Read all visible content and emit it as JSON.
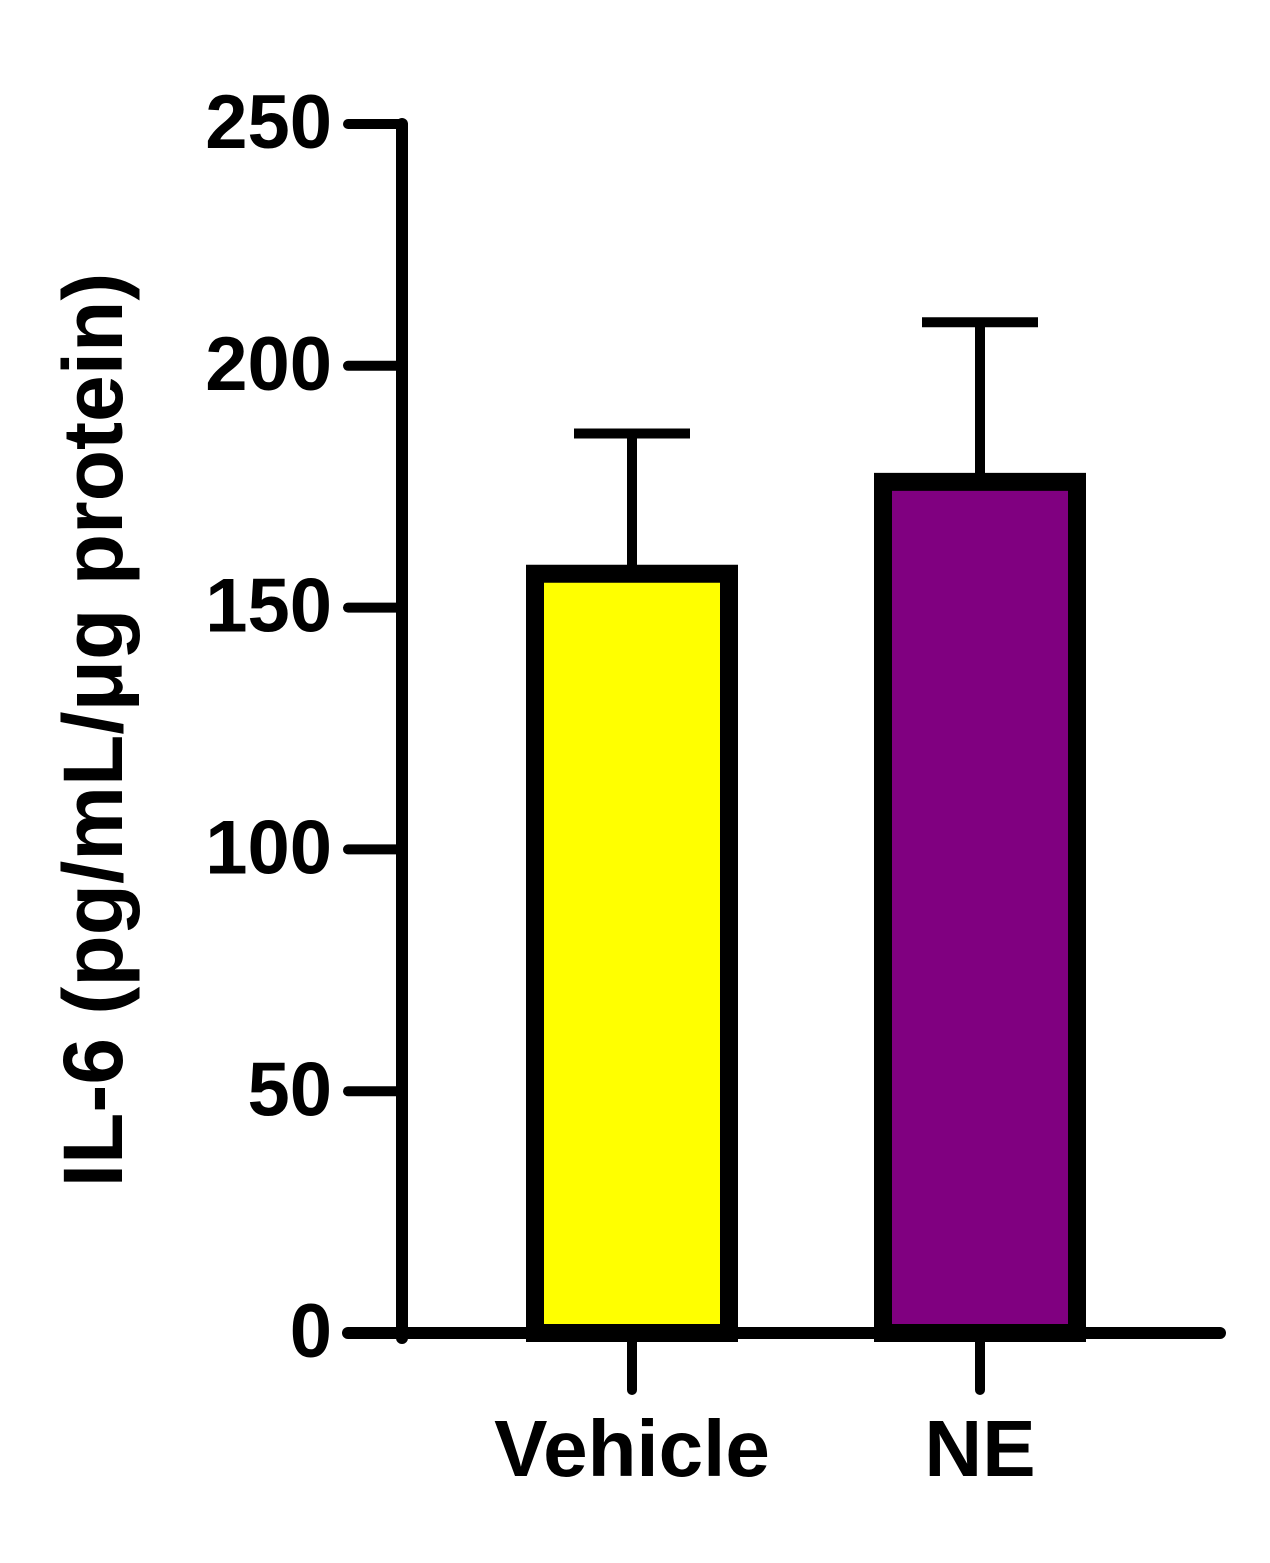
{
  "chart_data": {
    "type": "bar",
    "y_label": "IL-6 (pg/mL/μg protein)",
    "categories": [
      "Vehicle",
      "NE"
    ],
    "values": [
      157,
      176
    ],
    "errors": [
      29,
      33
    ],
    "colors": [
      "#ffff00",
      "#800080"
    ],
    "ylim": [
      0,
      250
    ],
    "yticks": [
      0,
      50,
      100,
      150,
      200,
      250
    ]
  }
}
